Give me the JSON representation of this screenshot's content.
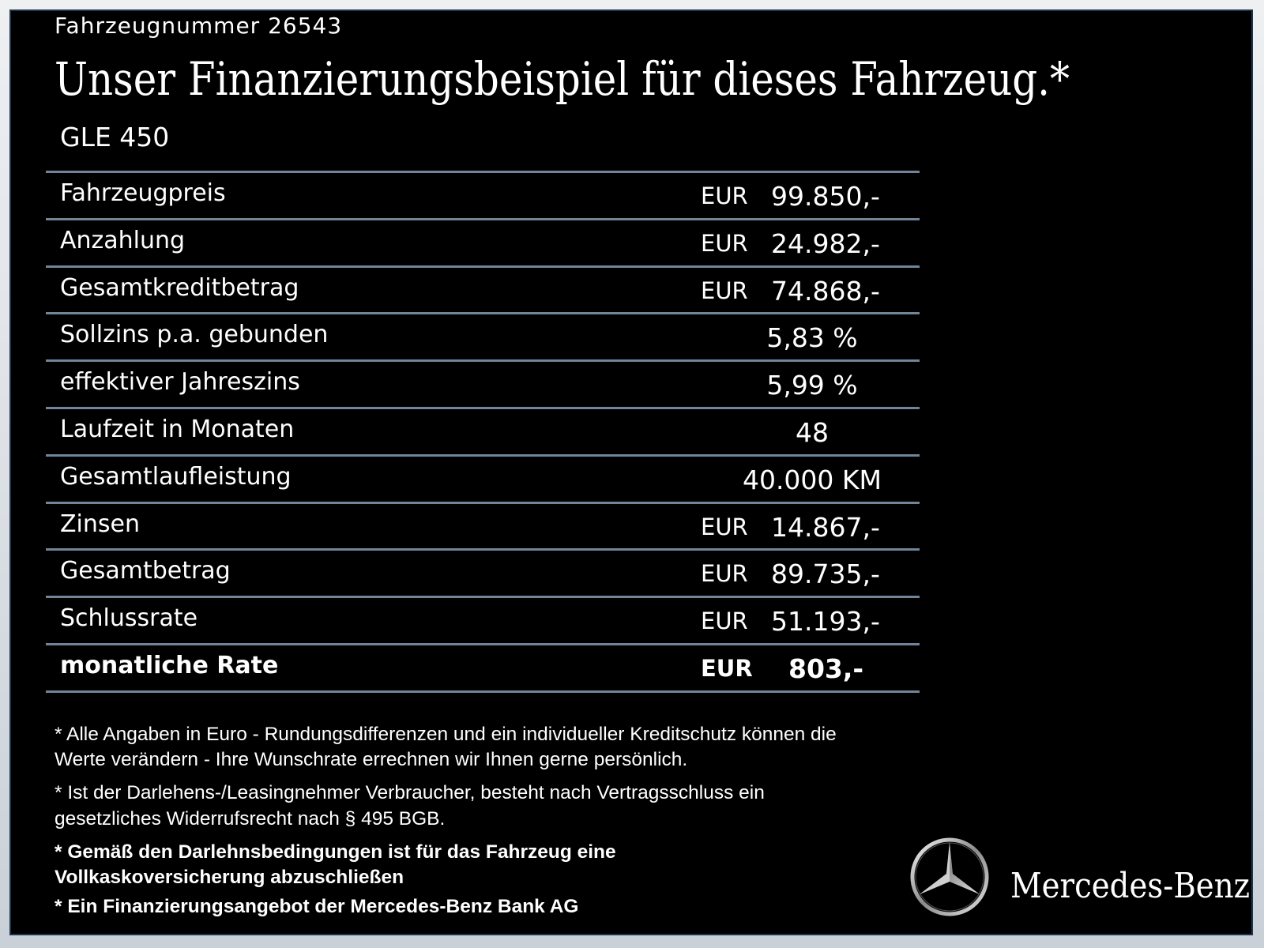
{
  "header": {
    "vehicle_number": "Fahrzeugnummer  26543",
    "title": "Unser Finanzierungsbeispiel für dieses Fahrzeug.*",
    "model": "GLE 450"
  },
  "rows": [
    {
      "label": "Fahrzeugpreis",
      "currency": "EUR",
      "value": "99.850,-"
    },
    {
      "label": "Anzahlung",
      "currency": "EUR",
      "value": "24.982,-"
    },
    {
      "label": "Gesamtkreditbetrag",
      "currency": "EUR",
      "value": "74.868,-"
    },
    {
      "label": "Sollzins p.a. gebunden",
      "value": "5,83 %"
    },
    {
      "label": "effektiver Jahreszins",
      "value": "5,99 %"
    },
    {
      "label": "Laufzeit in Monaten",
      "value": "48"
    },
    {
      "label": "Gesamtlaufleistung",
      "value": "40.000 KM"
    },
    {
      "label": "Zinsen",
      "currency": "EUR",
      "value": "14.867,-"
    },
    {
      "label": "Gesamtbetrag",
      "currency": "EUR",
      "value": "89.735,-"
    },
    {
      "label": "Schlussrate",
      "currency": "EUR",
      "value": "51.193,-"
    },
    {
      "label": "monatliche Rate",
      "currency": "EUR",
      "value": "803,-"
    }
  ],
  "footnotes": [
    "* Alle Angaben in Euro - Rundungsdifferenzen und ein individueller Kreditschutz können die",
    "   Werte verändern - Ihre Wunschrate errechnen wir Ihnen gerne persönlich.",
    "* Ist der Darlehens-/Leasingnehmer Verbraucher, besteht nach Vertragsschluss ein",
    "   gesetzliches  Widerrufsrecht nach § 495 BGB.",
    "* Gemäß den Darlehnsbedingungen ist für das Fahrzeug eine",
    "   Vollkaskoversicherung abzuschließen",
    "* Ein Finanzierungsangebot der Mercedes-Benz Bank AG"
  ],
  "brand": {
    "name": "Mercedes-Benz",
    "logo_icon": "mercedes-star-icon"
  },
  "colors": {
    "background": "#000000",
    "divider": "#6f8599",
    "frame": "#1d3550"
  }
}
